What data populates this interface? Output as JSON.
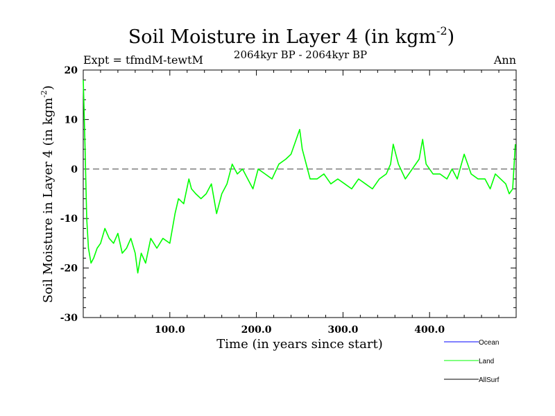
{
  "chart_data": {
    "type": "line",
    "title": "Soil Moisture in Layer 4 (in kgm",
    "title_sup": "-2",
    "title_close": ")",
    "subtitle_left": "Expt = tfmdM-tewtM",
    "subtitle_center": "2064kyr BP - 2064kyr BP",
    "subtitle_right": "Ann",
    "xlabel": "Time (in years since start)",
    "ylabel": "Soil Moisture in Layer 4 (in kgm",
    "ylabel_sup": "-2",
    "ylabel_close": ")",
    "xlim": [
      0,
      500
    ],
    "ylim": [
      -30,
      20
    ],
    "x_ticks": [
      100,
      200,
      300,
      400
    ],
    "x_tick_labels": [
      "100.0",
      "200.0",
      "300.0",
      "400.0"
    ],
    "y_ticks": [
      -30,
      -20,
      -10,
      0,
      10,
      20
    ],
    "y_tick_labels": [
      "-30",
      "-20",
      "-10",
      "0",
      "10",
      "20"
    ],
    "zero_line": 0,
    "legend": [
      {
        "name": "Ocean",
        "color": "#0000ff"
      },
      {
        "name": "Land",
        "color": "#00ff00"
      },
      {
        "name": "AllSurf",
        "color": "#000000"
      }
    ],
    "series": [
      {
        "name": "Land",
        "color": "#00ff00",
        "x": [
          0,
          2,
          4,
          6,
          9,
          12,
          16,
          20,
          25,
          30,
          35,
          40,
          45,
          50,
          55,
          60,
          63,
          67,
          72,
          78,
          85,
          92,
          100,
          106,
          110,
          116,
          122,
          125,
          130,
          136,
          142,
          148,
          154,
          160,
          166,
          172,
          178,
          184,
          190,
          196,
          202,
          210,
          218,
          226,
          234,
          240,
          246,
          250,
          253,
          256,
          262,
          270,
          278,
          286,
          294,
          302,
          310,
          318,
          326,
          334,
          342,
          350,
          355,
          358,
          364,
          372,
          380,
          388,
          392,
          396,
          404,
          412,
          420,
          426,
          432,
          440,
          448,
          456,
          464,
          470,
          476,
          482,
          488,
          492,
          496,
          499
        ],
        "values": [
          18,
          5,
          -10,
          -16,
          -19,
          -18,
          -16,
          -15,
          -12,
          -14,
          -15,
          -13,
          -17,
          -16,
          -14,
          -17,
          -21,
          -17,
          -19,
          -14,
          -16,
          -14,
          -15,
          -9,
          -6,
          -7,
          -2,
          -4,
          -5,
          -6,
          -5,
          -3,
          -9,
          -5,
          -3,
          1,
          -1,
          0,
          -2,
          -4,
          0,
          -1,
          -2,
          1,
          2,
          3,
          6,
          8,
          4,
          2,
          -2,
          -2,
          -1,
          -3,
          -2,
          -3,
          -4,
          -2,
          -3,
          -4,
          -2,
          -1,
          1,
          5,
          1,
          -2,
          0,
          2,
          6,
          1,
          -1,
          -1,
          -2,
          0,
          -2,
          3,
          -1,
          -2,
          -2,
          -4,
          -1,
          -2,
          -3,
          -5,
          -4,
          5
        ]
      }
    ]
  }
}
